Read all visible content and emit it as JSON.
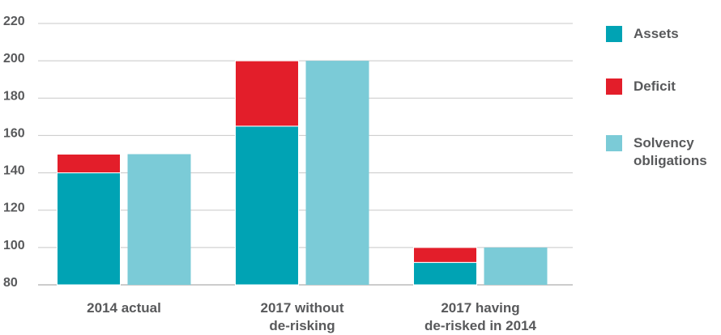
{
  "chart_data": {
    "type": "bar",
    "categories": [
      [
        "2014 actual"
      ],
      [
        "2017 without",
        "de-risking"
      ],
      [
        "2017 having",
        "de-risked in 2014"
      ]
    ],
    "series": [
      {
        "name": "Assets",
        "values": [
          140,
          165,
          92
        ],
        "color": "#00a3b4",
        "group": "stack"
      },
      {
        "name": "Deficit",
        "values": [
          10,
          35,
          8
        ],
        "color": "#e31e2a",
        "group": "stack"
      },
      {
        "name": "Solvency obligations",
        "legend_lines": [
          "Solvency",
          "obligations"
        ],
        "values": [
          150,
          200,
          100
        ],
        "color": "#7bcbd7",
        "group": "single"
      }
    ],
    "ylim": [
      80,
      220
    ],
    "yticks": [
      80,
      100,
      120,
      140,
      160,
      180,
      200,
      220
    ],
    "grid": true,
    "legend": "right",
    "title": "",
    "xlabel": "",
    "ylabel": ""
  }
}
